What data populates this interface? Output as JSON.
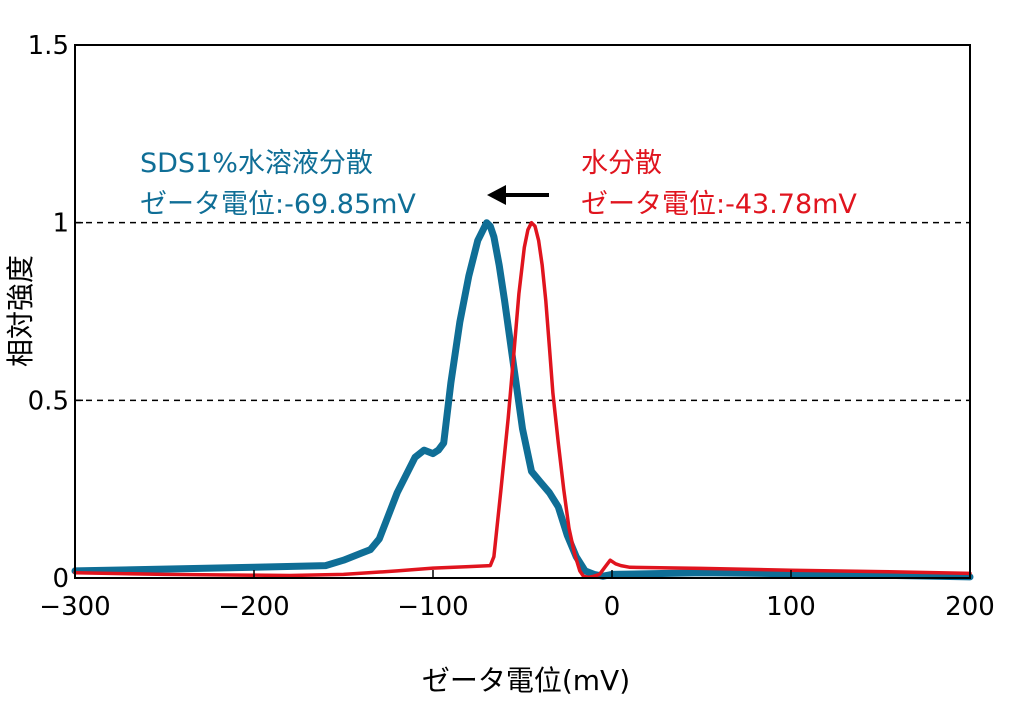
{
  "chart_data": {
    "type": "line",
    "xlabel": "ゼータ電位(mV)",
    "ylabel": "相対強度",
    "xlim": [
      -300,
      200
    ],
    "ylim": [
      0,
      1.5
    ],
    "x_ticks": [
      "−300",
      "−200",
      "−100",
      "0",
      "100",
      "200"
    ],
    "y_ticks": [
      "0",
      "0.5",
      "1",
      "1.5"
    ],
    "reference_lines": [
      0.5,
      1
    ],
    "grid": false,
    "series": [
      {
        "color": "#0f6e96",
        "label_line1": "SDS1%水溶液分散",
        "label_line2": "ゼータ電位:-69.85mV",
        "x": [
          -300,
          -200,
          -160,
          -150,
          -140,
          -135,
          -130,
          -120,
          -110,
          -105,
          -100,
          -97,
          -94,
          -90,
          -85,
          -80,
          -75,
          -72,
          -70,
          -68,
          -66,
          -63,
          -60,
          -55,
          -50,
          -45,
          -40,
          -35,
          -30,
          -25,
          -20,
          -15,
          -10,
          -5,
          0,
          50,
          100,
          150,
          200
        ],
        "y": [
          0.02,
          0.03,
          0.035,
          0.05,
          0.07,
          0.08,
          0.11,
          0.24,
          0.34,
          0.36,
          0.35,
          0.36,
          0.38,
          0.55,
          0.72,
          0.85,
          0.95,
          0.98,
          1.0,
          0.99,
          0.96,
          0.88,
          0.78,
          0.6,
          0.42,
          0.3,
          0.27,
          0.24,
          0.2,
          0.12,
          0.06,
          0.02,
          0.01,
          0.005,
          0.01,
          0.015,
          0.012,
          0.008,
          0.003
        ]
      },
      {
        "color": "#e0141e",
        "label_line1": "水分散",
        "label_line2": "ゼータ電位:-43.78mV",
        "x": [
          -300,
          -250,
          -180,
          -150,
          -120,
          -100,
          -80,
          -68,
          -66,
          -62,
          -58,
          -55,
          -52,
          -49,
          -47,
          -45,
          -43,
          -41,
          -39,
          -37,
          -35,
          -33,
          -30,
          -27,
          -24,
          -21,
          -18,
          -16,
          -13,
          -10,
          -7,
          -4,
          -1,
          2,
          5,
          10,
          50,
          100,
          150,
          200
        ],
        "y": [
          0.015,
          0.01,
          0.007,
          0.01,
          0.02,
          0.028,
          0.032,
          0.035,
          0.06,
          0.25,
          0.45,
          0.62,
          0.8,
          0.93,
          0.98,
          1.0,
          0.99,
          0.95,
          0.88,
          0.78,
          0.65,
          0.52,
          0.38,
          0.25,
          0.14,
          0.07,
          0.02,
          0.005,
          0.002,
          0.005,
          0.01,
          0.03,
          0.05,
          0.04,
          0.035,
          0.03,
          0.027,
          0.022,
          0.018,
          0.013
        ]
      }
    ],
    "annotation_arrow": "left"
  }
}
